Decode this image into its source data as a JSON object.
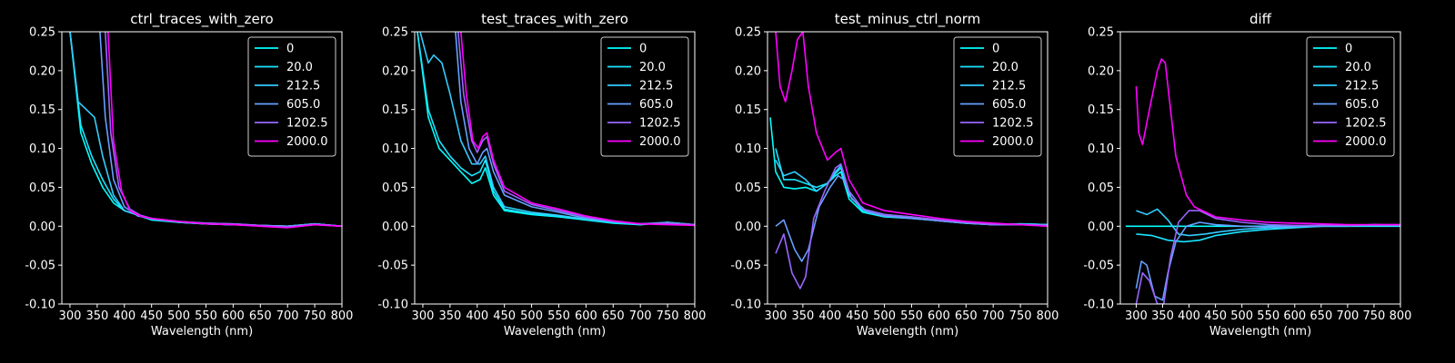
{
  "chart_data": [
    {
      "type": "line",
      "title": "ctrl_traces_with_zero",
      "xlabel": "Wavelength (nm)",
      "ylabel": "",
      "xlim": [
        285,
        800
      ],
      "ylim": [
        -0.1,
        0.25
      ],
      "xticks": [
        300,
        350,
        400,
        450,
        500,
        550,
        600,
        650,
        700,
        750,
        800
      ],
      "yticks": [
        -0.1,
        -0.05,
        0.0,
        0.05,
        0.1,
        0.15,
        0.2,
        0.25
      ],
      "legend": "top-right",
      "series": [
        {
          "name": "0",
          "color": "#00ffff",
          "x": [
            300,
            320,
            340,
            360,
            380,
            400,
            450,
            500,
            550,
            600,
            650,
            700,
            750,
            800
          ],
          "y": [
            0.25,
            0.12,
            0.08,
            0.05,
            0.03,
            0.02,
            0.008,
            0.005,
            0.003,
            0.002,
            0.001,
            0.0,
            0.003,
            0.0
          ]
        },
        {
          "name": "20.0",
          "color": "#1ae5ff",
          "x": [
            300,
            320,
            340,
            360,
            380,
            400,
            450,
            500,
            550,
            600,
            650,
            700,
            750,
            800
          ],
          "y": [
            0.25,
            0.13,
            0.09,
            0.06,
            0.035,
            0.02,
            0.009,
            0.005,
            0.003,
            0.002,
            0.001,
            0.0,
            0.003,
            0.0
          ]
        },
        {
          "name": "212.5",
          "color": "#33ccff",
          "x": [
            300,
            315,
            330,
            345,
            360,
            380,
            400,
            450,
            500,
            550,
            600,
            650,
            700,
            750,
            800
          ],
          "y": [
            0.25,
            0.16,
            0.15,
            0.14,
            0.09,
            0.04,
            0.02,
            0.009,
            0.005,
            0.003,
            0.002,
            0.001,
            0.0,
            0.003,
            0.0
          ]
        },
        {
          "name": "605.0",
          "color": "#66a0ff",
          "x": [
            355,
            365,
            380,
            400,
            425,
            450,
            500,
            550,
            600,
            650,
            700,
            750,
            800
          ],
          "y": [
            0.25,
            0.14,
            0.06,
            0.025,
            0.013,
            0.01,
            0.006,
            0.004,
            0.003,
            0.001,
            0.0,
            0.003,
            0.0
          ]
        },
        {
          "name": "1202.5",
          "color": "#9966ff",
          "x": [
            365,
            375,
            390,
            410,
            430,
            450,
            500,
            550,
            600,
            650,
            700,
            750,
            800
          ],
          "y": [
            0.25,
            0.12,
            0.05,
            0.022,
            0.014,
            0.01,
            0.006,
            0.004,
            0.003,
            0.001,
            -0.001,
            0.002,
            0.0
          ]
        },
        {
          "name": "2000.0",
          "color": "#ff00ff",
          "x": [
            370,
            380,
            395,
            410,
            430,
            450,
            500,
            550,
            600,
            650,
            700,
            750,
            800
          ],
          "y": [
            0.25,
            0.11,
            0.045,
            0.02,
            0.013,
            0.01,
            0.006,
            0.003,
            0.002,
            0.0,
            -0.002,
            0.002,
            0.0
          ]
        }
      ]
    },
    {
      "type": "line",
      "title": "test_traces_with_zero",
      "xlabel": "Wavelength (nm)",
      "ylabel": "",
      "xlim": [
        285,
        800
      ],
      "ylim": [
        -0.1,
        0.25
      ],
      "xticks": [
        300,
        350,
        400,
        450,
        500,
        550,
        600,
        650,
        700,
        750,
        800
      ],
      "yticks": [
        -0.1,
        -0.05,
        0.0,
        0.05,
        0.1,
        0.15,
        0.2,
        0.25
      ],
      "legend": "top-right",
      "series": [
        {
          "name": "0",
          "color": "#00ffff",
          "x": [
            290,
            310,
            330,
            350,
            370,
            390,
            405,
            415,
            430,
            450,
            500,
            550,
            600,
            650,
            700,
            750,
            800
          ],
          "y": [
            0.25,
            0.14,
            0.1,
            0.085,
            0.07,
            0.055,
            0.06,
            0.075,
            0.04,
            0.02,
            0.015,
            0.012,
            0.008,
            0.004,
            0.002,
            0.005,
            0.002
          ]
        },
        {
          "name": "20.0",
          "color": "#1ae5ff",
          "x": [
            290,
            310,
            330,
            350,
            370,
            390,
            405,
            415,
            430,
            450,
            500,
            550,
            600,
            650,
            700,
            750,
            800
          ],
          "y": [
            0.25,
            0.15,
            0.11,
            0.09,
            0.075,
            0.065,
            0.07,
            0.085,
            0.045,
            0.022,
            0.016,
            0.013,
            0.009,
            0.005,
            0.002,
            0.005,
            0.002
          ]
        },
        {
          "name": "212.5",
          "color": "#33ccff",
          "x": [
            295,
            310,
            320,
            335,
            350,
            370,
            390,
            405,
            415,
            430,
            450,
            500,
            550,
            600,
            650,
            700,
            750,
            800
          ],
          "y": [
            0.25,
            0.21,
            0.22,
            0.21,
            0.17,
            0.11,
            0.08,
            0.08,
            0.09,
            0.05,
            0.025,
            0.018,
            0.014,
            0.009,
            0.005,
            0.003,
            0.005,
            0.002
          ]
        },
        {
          "name": "605.0",
          "color": "#66a0ff",
          "x": [
            360,
            370,
            385,
            400,
            410,
            418,
            430,
            450,
            500,
            550,
            600,
            650,
            700,
            750,
            800
          ],
          "y": [
            0.25,
            0.16,
            0.1,
            0.08,
            0.095,
            0.1,
            0.07,
            0.04,
            0.025,
            0.018,
            0.01,
            0.006,
            0.003,
            0.004,
            0.002
          ]
        },
        {
          "name": "1202.5",
          "color": "#9966ff",
          "x": [
            365,
            375,
            390,
            400,
            410,
            418,
            430,
            450,
            500,
            550,
            600,
            650,
            700,
            750,
            800
          ],
          "y": [
            0.25,
            0.17,
            0.11,
            0.095,
            0.11,
            0.115,
            0.08,
            0.045,
            0.028,
            0.02,
            0.012,
            0.006,
            0.003,
            0.004,
            0.002
          ]
        },
        {
          "name": "2000.0",
          "color": "#ff00ff",
          "x": [
            370,
            380,
            392,
            402,
            410,
            418,
            430,
            450,
            500,
            550,
            600,
            650,
            700,
            750,
            800
          ],
          "y": [
            0.25,
            0.17,
            0.11,
            0.1,
            0.115,
            0.12,
            0.085,
            0.05,
            0.03,
            0.022,
            0.013,
            0.007,
            0.003,
            0.002,
            0.001
          ]
        }
      ]
    },
    {
      "type": "line",
      "title": "test_minus_ctrl_norm",
      "xlabel": "Wavelength (nm)",
      "ylabel": "",
      "xlim": [
        285,
        800
      ],
      "ylim": [
        -0.1,
        0.25
      ],
      "xticks": [
        300,
        350,
        400,
        450,
        500,
        550,
        600,
        650,
        700,
        750,
        800
      ],
      "yticks": [
        -0.1,
        -0.05,
        0.0,
        0.05,
        0.1,
        0.15,
        0.2,
        0.25
      ],
      "legend": "top-right",
      "series": [
        {
          "name": "0",
          "color": "#00ffff",
          "x": [
            290,
            300,
            315,
            335,
            355,
            375,
            395,
            410,
            420,
            435,
            460,
            500,
            550,
            600,
            650,
            700,
            750,
            800
          ],
          "y": [
            0.14,
            0.07,
            0.05,
            0.048,
            0.05,
            0.045,
            0.055,
            0.065,
            0.07,
            0.035,
            0.018,
            0.012,
            0.01,
            0.007,
            0.004,
            0.002,
            0.003,
            0.002
          ]
        },
        {
          "name": "20.0",
          "color": "#1ae5ff",
          "x": [
            300,
            315,
            335,
            355,
            375,
            395,
            410,
            420,
            435,
            460,
            500,
            550,
            600,
            650,
            700,
            750,
            800
          ],
          "y": [
            0.1,
            0.06,
            0.06,
            0.055,
            0.05,
            0.055,
            0.068,
            0.075,
            0.04,
            0.02,
            0.013,
            0.011,
            0.007,
            0.004,
            0.002,
            0.003,
            0.002
          ]
        },
        {
          "name": "212.5",
          "color": "#33ccff",
          "x": [
            300,
            315,
            335,
            355,
            375,
            395,
            410,
            420,
            435,
            460,
            500,
            550,
            600,
            650,
            700,
            750,
            800
          ],
          "y": [
            0.085,
            0.065,
            0.07,
            0.06,
            0.045,
            0.055,
            0.07,
            0.078,
            0.045,
            0.022,
            0.015,
            0.012,
            0.008,
            0.005,
            0.002,
            0.003,
            0.002
          ]
        },
        {
          "name": "605.0",
          "color": "#66a0ff",
          "x": [
            300,
            315,
            335,
            348,
            360,
            380,
            400,
            415,
            425,
            440,
            470,
            500,
            550,
            600,
            650,
            700,
            750,
            800
          ],
          "y": [
            0.0,
            0.008,
            -0.03,
            -0.045,
            -0.03,
            0.025,
            0.05,
            0.065,
            0.06,
            0.035,
            0.018,
            0.013,
            0.01,
            0.007,
            0.004,
            0.002,
            0.002,
            0.001
          ]
        },
        {
          "name": "1202.5",
          "color": "#9966ff",
          "x": [
            300,
            315,
            330,
            345,
            355,
            370,
            390,
            410,
            420,
            435,
            460,
            500,
            550,
            600,
            650,
            700,
            750,
            800
          ],
          "y": [
            -0.035,
            -0.01,
            -0.06,
            -0.08,
            -0.065,
            0.01,
            0.045,
            0.075,
            0.08,
            0.045,
            0.022,
            0.015,
            0.012,
            0.008,
            0.005,
            0.002,
            0.002,
            0.001
          ]
        },
        {
          "name": "2000.0",
          "color": "#ff00ff",
          "x": [
            300,
            308,
            318,
            330,
            340,
            350,
            360,
            375,
            395,
            410,
            420,
            435,
            460,
            500,
            550,
            600,
            650,
            700,
            750,
            800
          ],
          "y": [
            0.25,
            0.18,
            0.16,
            0.2,
            0.24,
            0.25,
            0.18,
            0.12,
            0.085,
            0.095,
            0.1,
            0.06,
            0.03,
            0.02,
            0.015,
            0.01,
            0.006,
            0.004,
            0.002,
            0.0
          ]
        }
      ]
    },
    {
      "type": "line",
      "title": "diff",
      "xlabel": "Wavelength (nm)",
      "ylabel": "",
      "xlim": [
        270,
        800
      ],
      "ylim": [
        -0.1,
        0.25
      ],
      "xticks": [
        300,
        350,
        400,
        450,
        500,
        550,
        600,
        650,
        700,
        750,
        800
      ],
      "yticks": [
        -0.1,
        -0.05,
        0.0,
        0.05,
        0.1,
        0.15,
        0.2,
        0.25
      ],
      "legend": "top-right",
      "series": [
        {
          "name": "0",
          "color": "#00ffff",
          "x": [
            280,
            800
          ],
          "y": [
            0.0,
            0.0
          ]
        },
        {
          "name": "20.0",
          "color": "#1ae5ff",
          "x": [
            300,
            330,
            360,
            390,
            420,
            450,
            500,
            550,
            600,
            650,
            700,
            750,
            800
          ],
          "y": [
            -0.01,
            -0.012,
            -0.018,
            -0.02,
            -0.018,
            -0.012,
            -0.007,
            -0.004,
            -0.002,
            0.0,
            0.0,
            0.002,
            0.001
          ]
        },
        {
          "name": "212.5",
          "color": "#33ccff",
          "x": [
            300,
            320,
            340,
            360,
            380,
            400,
            430,
            460,
            500,
            550,
            600,
            650,
            700,
            750,
            800
          ],
          "y": [
            0.02,
            0.015,
            0.022,
            0.008,
            -0.01,
            -0.012,
            -0.01,
            -0.007,
            -0.004,
            -0.002,
            -0.001,
            0.0,
            0.001,
            0.002,
            0.001
          ]
        },
        {
          "name": "605.0",
          "color": "#66a0ff",
          "x": [
            300,
            310,
            320,
            335,
            350,
            360,
            375,
            395,
            420,
            450,
            500,
            550,
            600,
            650,
            700,
            750,
            800
          ],
          "y": [
            -0.08,
            -0.045,
            -0.05,
            -0.09,
            -0.095,
            -0.06,
            -0.02,
            0.0,
            0.005,
            0.002,
            0.0,
            -0.001,
            0.0,
            0.001,
            0.001,
            0.001,
            0.001
          ]
        },
        {
          "name": "1202.5",
          "color": "#9966ff",
          "x": [
            300,
            312,
            325,
            340,
            352,
            365,
            380,
            400,
            420,
            450,
            500,
            550,
            600,
            650,
            700,
            750,
            800
          ],
          "y": [
            -0.1,
            -0.06,
            -0.07,
            -0.1,
            -0.1,
            -0.04,
            0.005,
            0.02,
            0.02,
            0.01,
            0.005,
            0.002,
            0.001,
            0.001,
            0.001,
            0.002,
            0.002
          ]
        },
        {
          "name": "2000.0",
          "color": "#ff00ff",
          "x": [
            300,
            305,
            312,
            325,
            340,
            348,
            355,
            365,
            375,
            395,
            410,
            425,
            450,
            500,
            550,
            600,
            650,
            700,
            750,
            800
          ],
          "y": [
            0.18,
            0.12,
            0.105,
            0.15,
            0.2,
            0.215,
            0.21,
            0.15,
            0.09,
            0.04,
            0.025,
            0.02,
            0.012,
            0.008,
            0.005,
            0.004,
            0.003,
            0.002,
            0.002,
            0.002
          ]
        }
      ]
    }
  ]
}
